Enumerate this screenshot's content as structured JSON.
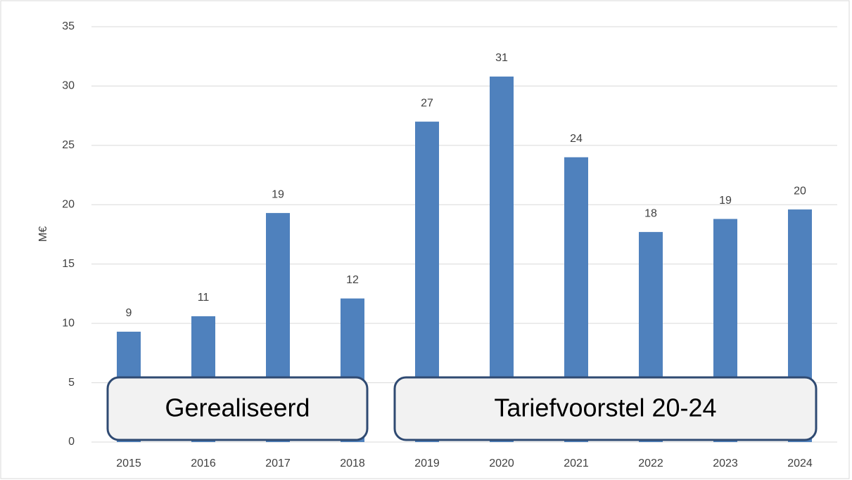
{
  "chart_data": {
    "type": "bar",
    "y_label": "M€",
    "categories": [
      "2015",
      "2016",
      "2017",
      "2018",
      "2019",
      "2020",
      "2021",
      "2022",
      "2023",
      "2024"
    ],
    "values": [
      9.3,
      10.6,
      19.3,
      12.1,
      27.0,
      30.8,
      24.0,
      17.7,
      18.8,
      19.6
    ],
    "value_labels": [
      "9",
      "11",
      "19",
      "12",
      "27",
      "31",
      "24",
      "18",
      "19",
      "20"
    ],
    "color": "#4f81bd",
    "ylim": [
      0,
      35
    ],
    "yticks": [
      0,
      5,
      10,
      15,
      20,
      25,
      30,
      35
    ],
    "grid": true,
    "annotations": [
      "Gerealiseerd",
      "Tariefvoorstel 20-24"
    ]
  }
}
